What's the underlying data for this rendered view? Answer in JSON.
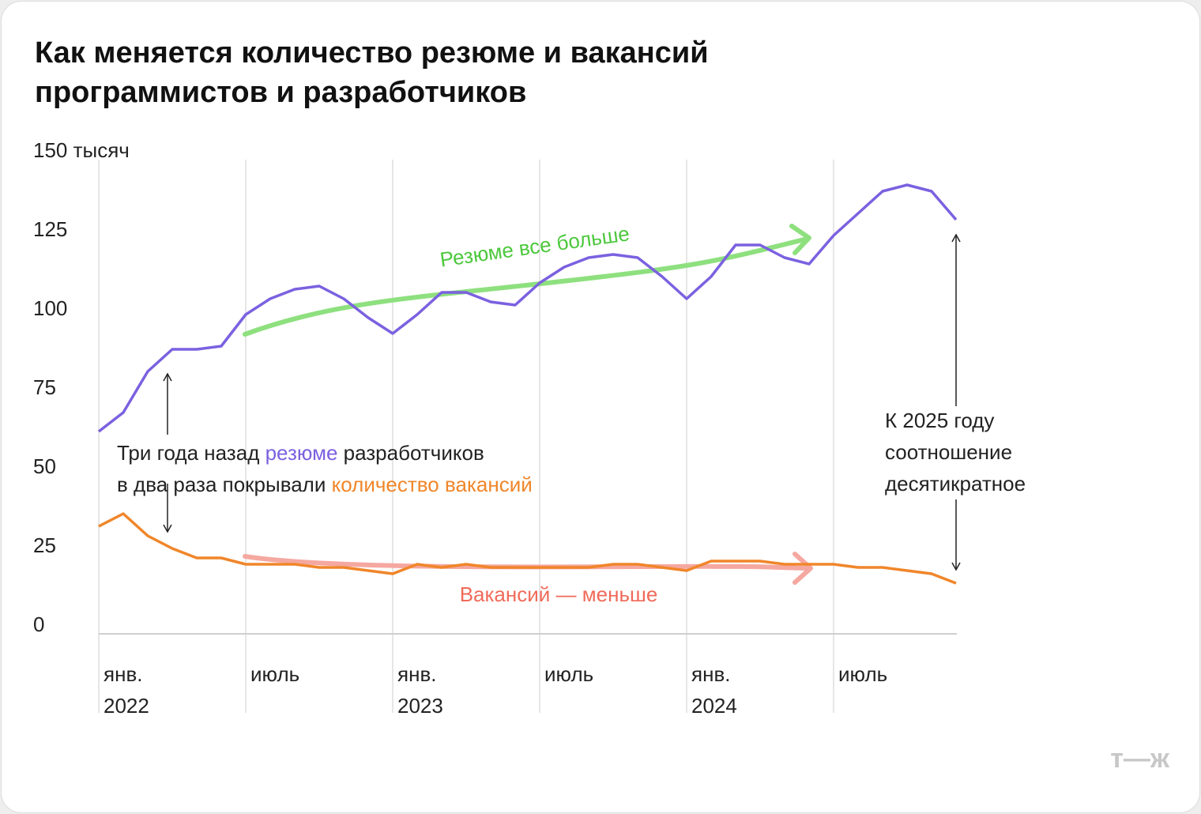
{
  "chart_data": {
    "type": "line",
    "title": "Как меняется количество резюме и вакансий программистов и разработчиков",
    "categories": [
      "янв. 2022",
      null,
      null,
      null,
      null,
      null,
      "июль",
      null,
      null,
      null,
      null,
      null,
      "янв. 2023",
      null,
      null,
      null,
      null,
      null,
      "июль",
      null,
      null,
      null,
      null,
      null,
      "янв. 2024",
      null,
      null,
      null,
      null,
      null,
      "июль",
      null,
      null,
      null,
      null,
      null
    ],
    "series": [
      {
        "name": "резюме",
        "color": "#7b61e0",
        "values": [
          64,
          70,
          83,
          90,
          90,
          91,
          101,
          106,
          109,
          110,
          106,
          100,
          95,
          101,
          108,
          108,
          105,
          104,
          111,
          116,
          119,
          120,
          119,
          113,
          106,
          113,
          123,
          123,
          119,
          117,
          126,
          133,
          140,
          142,
          140,
          131
        ]
      },
      {
        "name": "вакансии",
        "color": "#f0862a",
        "values": [
          34,
          38,
          31,
          27,
          24,
          24,
          22,
          22,
          22,
          21,
          21,
          20,
          19,
          22,
          21,
          22,
          21,
          21,
          21,
          21,
          21,
          22,
          22,
          21,
          20,
          23,
          23,
          23,
          22,
          22,
          22,
          21,
          21,
          20,
          19,
          16
        ]
      }
    ],
    "ylim": [
      0,
      150
    ],
    "yticks": [
      0,
      25,
      50,
      75,
      100,
      125,
      {
        "value": 150,
        "label": "150 тысяч"
      }
    ],
    "annotations": {
      "resume_trend": "Резюме все больше",
      "vacancy_trend": "Вакансий — меньше",
      "left_note": {
        "line1": [
          "Три года назад ",
          "резюме",
          " разработчиков"
        ],
        "line2": [
          "в два раза покрывали ",
          "количество вакансий"
        ]
      },
      "right_note": "К 2025 году соотношение десятикратное"
    },
    "logo": "т—ж"
  }
}
